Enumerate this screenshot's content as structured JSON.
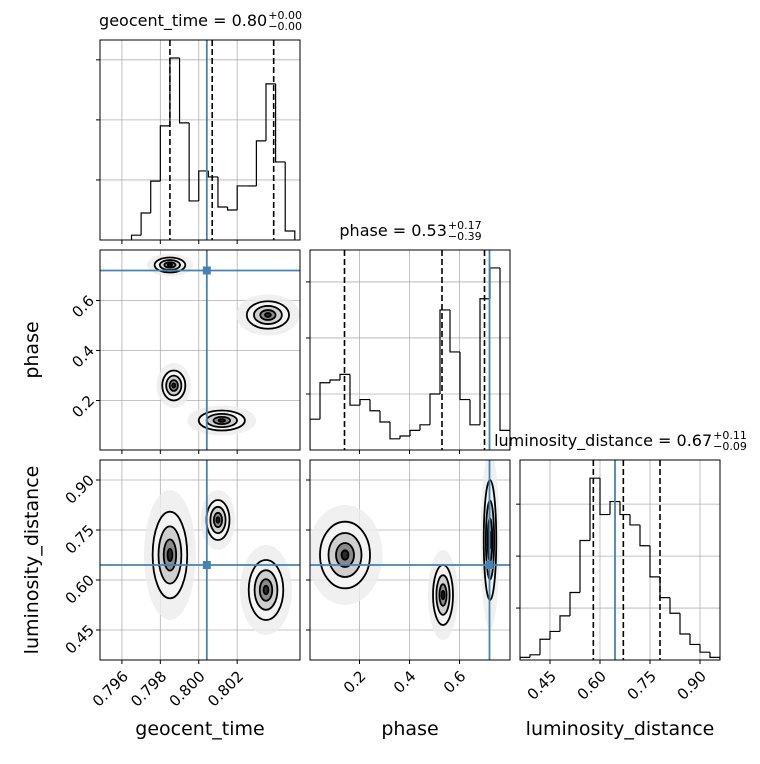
{
  "chart_data": {
    "type": "corner",
    "grid": true,
    "hist_color": "#000000",
    "truth_color": "#4682b4",
    "contour_color": "#000000",
    "parameters": [
      {
        "label": "geocent_time",
        "title": {
          "name": "geocent_time = 0.80",
          "upper": "+0.00",
          "lower": "−0.00"
        },
        "lim": [
          0.79486,
          0.80527
        ],
        "ticks": [
          0.796,
          0.798,
          {
            "value": 0.8,
            "label": "0.800"
          },
          0.802
        ],
        "truth": 0.80042,
        "quantiles": [
          0.7985,
          0.8007,
          0.8039
        ],
        "bins": [
          0.7965,
          0.797,
          0.7975,
          0.798,
          0.7985,
          0.799,
          0.7995,
          0.8,
          0.8005,
          0.801,
          0.8015,
          0.802,
          0.8025,
          0.803,
          0.8035,
          0.804,
          0.8045,
          0.805
        ],
        "counts": [
          0.08,
          0.45,
          0.98,
          1.9,
          3.03,
          1.95,
          0.65,
          1.15,
          1.05,
          0.55,
          0.5,
          0.9,
          0.9,
          1.65,
          2.6,
          1.3,
          0.15
        ],
        "count_lim": [
          0,
          3.33
        ],
        "count_ticks": [
          1,
          2,
          3
        ]
      },
      {
        "label": "phase",
        "title": {
          "name": "phase = 0.53",
          "upper": "+0.17",
          "lower": "−0.39"
        },
        "lim": [
          0.002,
          0.802
        ],
        "ticks": [
          0.2,
          0.4,
          0.6
        ],
        "truth": 0.72,
        "quantiles": [
          0.14,
          0.53,
          0.7
        ],
        "bins": [
          0.002,
          0.042,
          0.082,
          0.122,
          0.162,
          0.202,
          0.242,
          0.282,
          0.322,
          0.362,
          0.402,
          0.442,
          0.482,
          0.522,
          0.562,
          0.602,
          0.642,
          0.682,
          0.722,
          0.762,
          0.802
        ],
        "counts": [
          0.55,
          1.2,
          1.25,
          1.35,
          0.8,
          0.9,
          0.7,
          0.5,
          0.2,
          0.25,
          0.35,
          0.45,
          1.0,
          2.5,
          1.75,
          0.9,
          0.45,
          2.7,
          3.25,
          0.35
        ],
        "count_lim": [
          0,
          3.57
        ],
        "count_ticks": [
          1,
          2,
          3
        ]
      },
      {
        "label": "luminosity_distance",
        "title": {
          "name": "luminosity_distance = 0.67",
          "upper": "+0.11",
          "lower": "−0.09"
        },
        "lim": [
          0.36,
          0.96
        ],
        "ticks": [
          0.45,
          {
            "value": 0.6,
            "label": "0.60"
          },
          0.75,
          {
            "value": 0.9,
            "label": "0.90"
          }
        ],
        "truth": 0.645,
        "quantiles": [
          0.58,
          0.67,
          0.78
        ],
        "bins": [
          0.36,
          0.39,
          0.42,
          0.45,
          0.48,
          0.51,
          0.54,
          0.57,
          0.6,
          0.63,
          0.66,
          0.69,
          0.72,
          0.75,
          0.78,
          0.81,
          0.84,
          0.87,
          0.9,
          0.93,
          0.96
        ],
        "counts": [
          0.05,
          0.1,
          0.4,
          0.55,
          0.85,
          1.3,
          2.3,
          3.5,
          2.8,
          3.05,
          2.8,
          2.6,
          2.2,
          1.6,
          1.2,
          0.9,
          0.5,
          0.3,
          0.15,
          0.05
        ],
        "count_lim": [
          0,
          3.85
        ],
        "count_ticks": [
          1,
          2,
          3
        ]
      }
    ],
    "pairs": [
      {
        "contours": [
          {
            "x": 0.7985,
            "y": 0.742,
            "rx": 0.0008,
            "ry": 0.03
          },
          {
            "x": 0.8036,
            "y": 0.542,
            "rx": 0.0011,
            "ry": 0.055
          },
          {
            "x": 0.7987,
            "y": 0.26,
            "rx": 0.0006,
            "ry": 0.06
          },
          {
            "x": 0.8012,
            "y": 0.12,
            "rx": 0.0012,
            "ry": 0.04
          }
        ]
      },
      {
        "contours": [
          {
            "x": 0.7985,
            "y": 0.675,
            "rx": 0.0009,
            "ry": 0.13
          },
          {
            "x": 0.8035,
            "y": 0.57,
            "rx": 0.0009,
            "ry": 0.09
          },
          {
            "x": 0.801,
            "y": 0.78,
            "rx": 0.0006,
            "ry": 0.06
          }
        ]
      },
      {
        "contours": [
          {
            "x": 0.142,
            "y": 0.675,
            "rx": 0.1,
            "ry": 0.1
          },
          {
            "x": 0.534,
            "y": 0.555,
            "rx": 0.04,
            "ry": 0.09
          },
          {
            "x": 0.722,
            "y": 0.72,
            "rx": 0.025,
            "ry": 0.18
          }
        ]
      }
    ]
  }
}
